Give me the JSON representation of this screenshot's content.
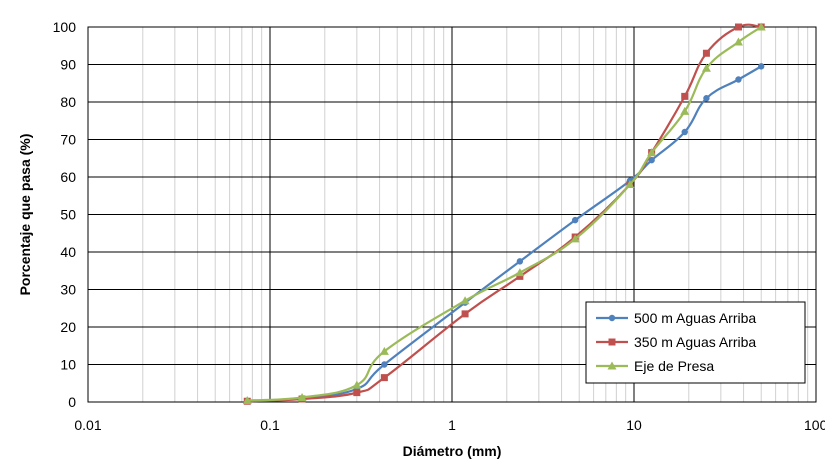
{
  "chart_data": {
    "type": "line",
    "title": "",
    "xlabel": "Diámetro (mm)",
    "ylabel": "Porcentaje que pasa (%)",
    "x_scale": "log",
    "xlim": [
      0.01,
      100
    ],
    "ylim": [
      0,
      100
    ],
    "x_ticks": [
      0.01,
      0.1,
      1,
      10,
      100
    ],
    "x_tick_labels": [
      "0.01",
      "0.1",
      "1",
      "10",
      "100"
    ],
    "y_ticks": [
      0,
      10,
      20,
      30,
      40,
      50,
      60,
      70,
      80,
      90,
      100
    ],
    "y_tick_labels": [
      "0",
      "10",
      "20",
      "30",
      "40",
      "50",
      "60",
      "70",
      "80",
      "90",
      "100"
    ],
    "grid": true,
    "legend_position": "bottom-right",
    "series": [
      {
        "name": "500 m Aguas Arriba",
        "color": "#4f81bd",
        "marker": "circle",
        "points": [
          [
            0.075,
            0.3
          ],
          [
            0.15,
            1.0
          ],
          [
            0.3,
            3.5
          ],
          [
            0.425,
            10.0
          ],
          [
            1.18,
            26.5
          ],
          [
            2.36,
            37.5
          ],
          [
            4.75,
            48.5
          ],
          [
            9.5,
            59.0
          ],
          [
            12.5,
            64.5
          ],
          [
            19.0,
            72.0
          ],
          [
            25.0,
            81.0
          ],
          [
            37.5,
            86.0
          ],
          [
            50.0,
            89.5
          ]
        ]
      },
      {
        "name": "350 m Aguas Arriba",
        "color": "#c0504d",
        "marker": "square",
        "points": [
          [
            0.075,
            0.2
          ],
          [
            0.15,
            0.8
          ],
          [
            0.3,
            2.5
          ],
          [
            0.425,
            6.5
          ],
          [
            1.18,
            23.5
          ],
          [
            2.36,
            33.5
          ],
          [
            4.75,
            44.0
          ],
          [
            9.5,
            58.0
          ],
          [
            12.5,
            66.5
          ],
          [
            19.0,
            81.5
          ],
          [
            25.0,
            93.0
          ],
          [
            37.5,
            100.0
          ],
          [
            50.0,
            100.0
          ]
        ]
      },
      {
        "name": "Eje de Presa",
        "color": "#9bbb59",
        "marker": "triangle",
        "points": [
          [
            0.075,
            0.4
          ],
          [
            0.15,
            1.2
          ],
          [
            0.3,
            4.5
          ],
          [
            0.425,
            13.5
          ],
          [
            1.18,
            27.0
          ],
          [
            2.36,
            34.5
          ],
          [
            4.75,
            43.5
          ],
          [
            9.5,
            58.0
          ],
          [
            12.5,
            66.5
          ],
          [
            19.0,
            77.5
          ],
          [
            25.0,
            89.0
          ],
          [
            37.5,
            96.0
          ],
          [
            50.0,
            100.0
          ]
        ]
      }
    ]
  }
}
